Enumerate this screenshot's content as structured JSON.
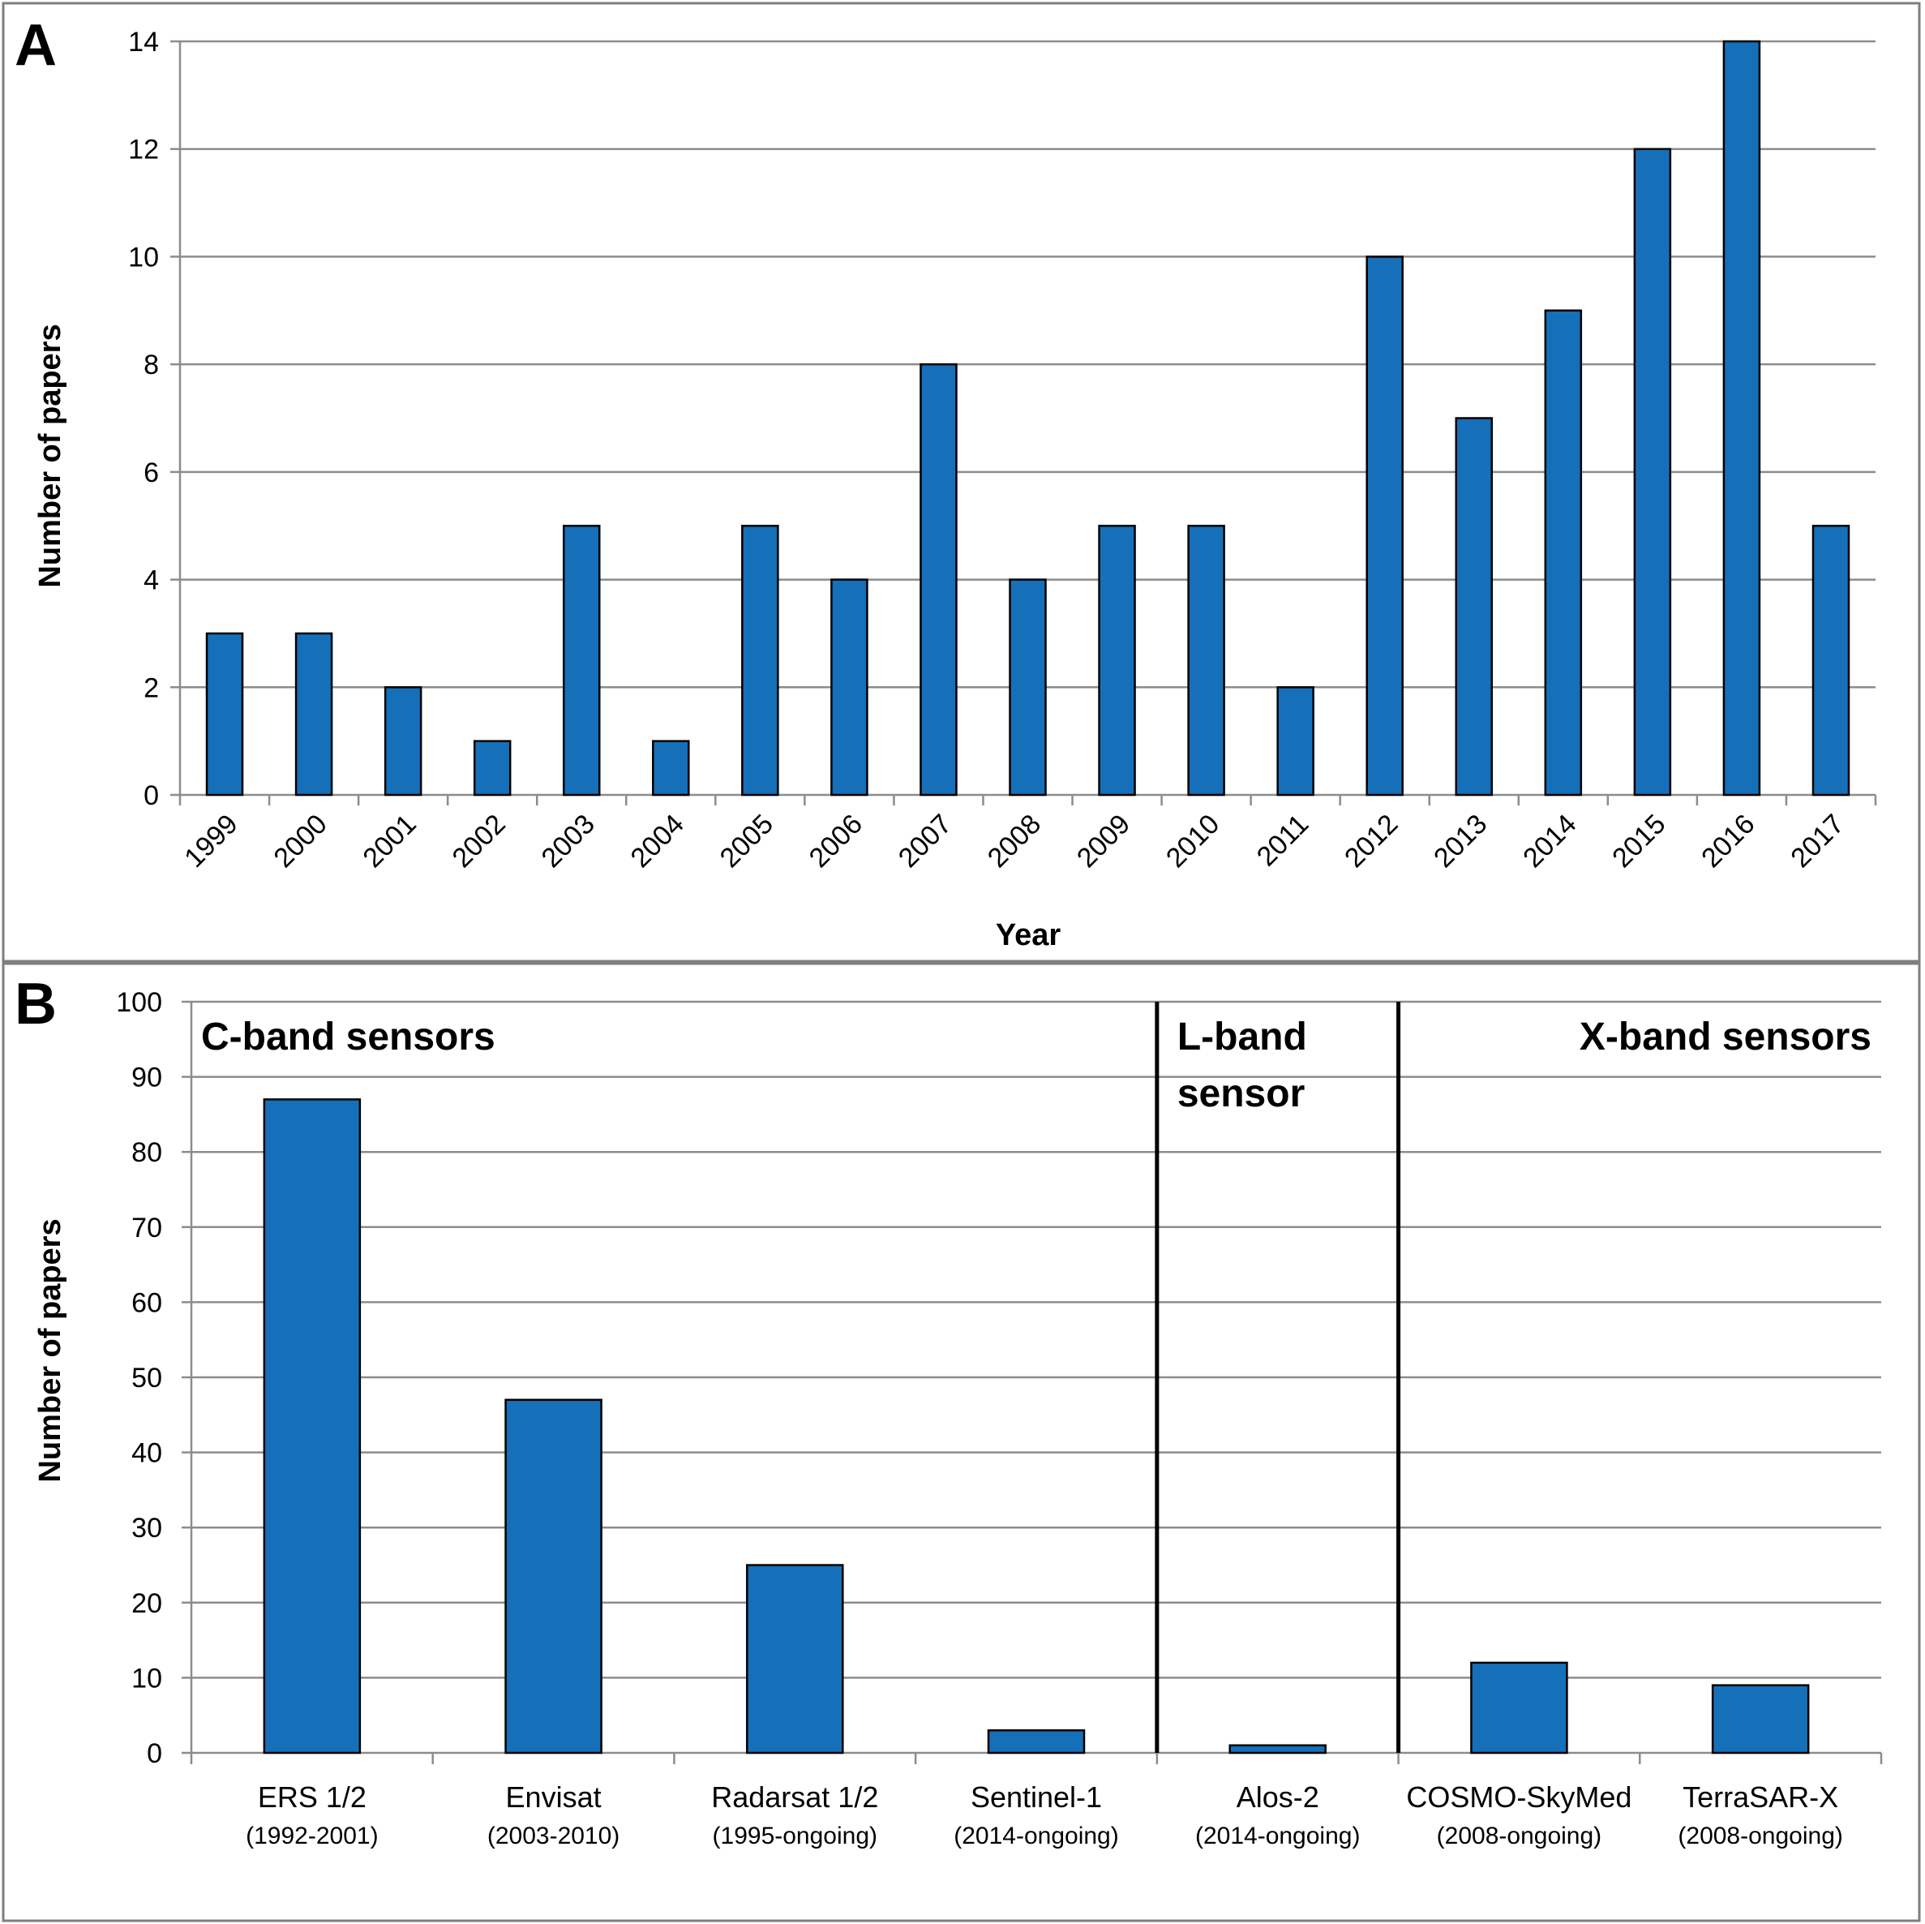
{
  "colors": {
    "bar_fill": "#1570b9",
    "bar_stroke": "#000000",
    "grid": "#8c8c8c",
    "frame": "#7f7f7f",
    "divider": "#000000",
    "text": "#000000"
  },
  "chart_data": [
    {
      "panel_label": "A",
      "type": "bar",
      "title": "",
      "xlabel": "Year",
      "ylabel": "Number of papers",
      "ylim": [
        0,
        14
      ],
      "yticks": [
        0,
        2,
        4,
        6,
        8,
        10,
        12,
        14
      ],
      "grid": true,
      "categories": [
        "1999",
        "2000",
        "2001",
        "2002",
        "2003",
        "2004",
        "2005",
        "2006",
        "2007",
        "2008",
        "2009",
        "2010",
        "2011",
        "2012",
        "2013",
        "2014",
        "2015",
        "2016",
        "2017"
      ],
      "values": [
        3,
        3,
        2,
        1,
        5,
        1,
        5,
        4,
        8,
        4,
        5,
        5,
        2,
        10,
        7,
        9,
        12,
        14,
        5
      ]
    },
    {
      "panel_label": "B",
      "type": "bar",
      "title": "",
      "xlabel": "",
      "ylabel": "Number of papers",
      "ylim": [
        0,
        100
      ],
      "yticks": [
        0,
        10,
        20,
        30,
        40,
        50,
        60,
        70,
        80,
        90,
        100
      ],
      "grid": true,
      "categories": [
        {
          "name": "ERS 1/2",
          "period": "(1992-2001)"
        },
        {
          "name": "Envisat",
          "period": "(2003-2010)"
        },
        {
          "name": "Radarsat 1/2",
          "period": "(1995-ongoing)"
        },
        {
          "name": "Sentinel-1",
          "period": "(2014-ongoing)"
        },
        {
          "name": "Alos-2",
          "period": "(2014-ongoing)"
        },
        {
          "name": "COSMO-SkyMed",
          "period": "(2008-ongoing)"
        },
        {
          "name": "TerraSAR-X",
          "period": "(2008-ongoing)"
        }
      ],
      "values": [
        87,
        47,
        25,
        3,
        1,
        12,
        9
      ],
      "groups": [
        {
          "label_lines": [
            "C-band sensors"
          ],
          "from": 0,
          "to": 3,
          "align": "left"
        },
        {
          "label_lines": [
            "L-band",
            "sensor"
          ],
          "from": 4,
          "to": 4,
          "align": "left"
        },
        {
          "label_lines": [
            "X-band sensors"
          ],
          "from": 5,
          "to": 6,
          "align": "right"
        }
      ]
    }
  ]
}
